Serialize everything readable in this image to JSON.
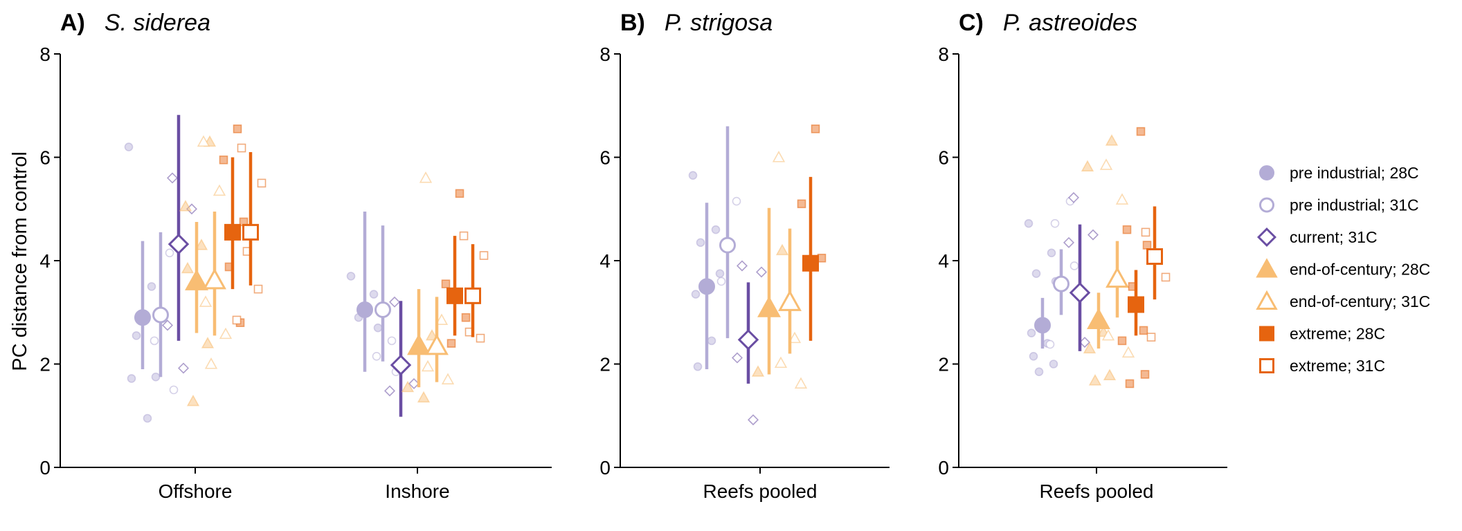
{
  "figure": {
    "ylabel": "PC distance from control"
  },
  "legend": [
    {
      "label": "pre industrial; 28C",
      "color": "#b3acd6",
      "shape": "circle",
      "filled": true
    },
    {
      "label": "pre industrial; 31C",
      "color": "#b3acd6",
      "shape": "circle",
      "filled": false
    },
    {
      "label": "current; 31C",
      "color": "#6a4ea3",
      "shape": "diamond",
      "filled": false
    },
    {
      "label": "end-of-century; 28C",
      "color": "#f8bd73",
      "shape": "triangle",
      "filled": true
    },
    {
      "label": "end-of-century; 31C",
      "color": "#f8bd73",
      "shape": "triangle",
      "filled": false
    },
    {
      "label": "extreme; 28C",
      "color": "#e6640f",
      "shape": "square",
      "filled": true
    },
    {
      "label": "extreme; 31C",
      "color": "#e6640f",
      "shape": "square",
      "filled": false
    }
  ],
  "chart_data": [
    {
      "type": "scatter",
      "panel_label": "A)",
      "title": "S. siderea",
      "ylabel": "PC distance from control",
      "ylim": [
        0,
        8
      ],
      "yticks": [
        0,
        2,
        4,
        6,
        8
      ],
      "categories": [
        "Offshore",
        "Inshore"
      ],
      "grid": false,
      "groups": [
        {
          "category": "Offshore",
          "series": [
            {
              "name": "pre industrial; 28C",
              "mean": 2.9,
              "lower": 1.9,
              "upper": 4.38,
              "points": [
                6.2,
                3.5,
                2.55,
                1.75,
                1.72,
                0.95
              ]
            },
            {
              "name": "pre industrial; 31C",
              "mean": 2.95,
              "lower": 1.75,
              "upper": 4.55,
              "points": [
                4.15,
                2.45,
                1.5
              ]
            },
            {
              "name": "current; 31C",
              "mean": 4.32,
              "lower": 2.45,
              "upper": 6.82,
              "points": [
                5.6,
                5.0,
                2.75,
                1.92
              ]
            },
            {
              "name": "end-of-century; 28C",
              "mean": 3.6,
              "lower": 2.6,
              "upper": 4.75,
              "points": [
                6.3,
                5.05,
                4.3,
                3.85,
                2.4,
                1.28
              ]
            },
            {
              "name": "end-of-century; 31C",
              "mean": 3.62,
              "lower": 2.55,
              "upper": 4.95,
              "points": [
                6.3,
                5.35,
                3.2,
                2.58,
                2.0
              ]
            },
            {
              "name": "extreme; 28C",
              "mean": 4.55,
              "lower": 3.45,
              "upper": 6.0,
              "points": [
                6.55,
                5.95,
                4.75,
                3.88,
                2.8
              ]
            },
            {
              "name": "extreme; 31C",
              "mean": 4.55,
              "lower": 3.52,
              "upper": 6.1,
              "points": [
                6.18,
                5.5,
                4.18,
                3.45,
                2.85
              ]
            }
          ]
        },
        {
          "category": "Inshore",
          "series": [
            {
              "name": "pre industrial; 28C",
              "mean": 3.05,
              "lower": 1.85,
              "upper": 4.95,
              "points": [
                3.7,
                3.35,
                2.9,
                2.7
              ]
            },
            {
              "name": "pre industrial; 31C",
              "mean": 3.05,
              "lower": 2.05,
              "upper": 4.68,
              "points": [
                2.45,
                2.15,
                1.85
              ]
            },
            {
              "name": "current; 31C",
              "mean": 1.98,
              "lower": 0.98,
              "upper": 3.22,
              "points": [
                3.2,
                1.62,
                1.48
              ]
            },
            {
              "name": "end-of-century; 28C",
              "mean": 2.35,
              "lower": 1.55,
              "upper": 3.45,
              "points": [
                2.55,
                1.55,
                1.35
              ]
            },
            {
              "name": "end-of-century; 31C",
              "mean": 2.35,
              "lower": 1.65,
              "upper": 3.3,
              "points": [
                5.6,
                2.85,
                1.95,
                1.7
              ]
            },
            {
              "name": "extreme; 28C",
              "mean": 3.32,
              "lower": 2.55,
              "upper": 4.48,
              "points": [
                5.3,
                3.55,
                2.9,
                2.4
              ]
            },
            {
              "name": "extreme; 31C",
              "mean": 3.32,
              "lower": 2.52,
              "upper": 4.32,
              "points": [
                4.48,
                4.1,
                2.62,
                2.5
              ]
            }
          ]
        }
      ]
    },
    {
      "type": "scatter",
      "panel_label": "B)",
      "title": "P. strigosa",
      "ylim": [
        0,
        8
      ],
      "yticks": [
        0,
        2,
        4,
        6,
        8
      ],
      "categories": [
        "Reefs pooled"
      ],
      "grid": false,
      "groups": [
        {
          "category": "Reefs pooled",
          "series": [
            {
              "name": "pre industrial; 28C",
              "mean": 3.5,
              "lower": 1.9,
              "upper": 5.12,
              "points": [
                5.65,
                4.6,
                4.35,
                3.75,
                3.35,
                2.45,
                1.95
              ]
            },
            {
              "name": "pre industrial; 31C",
              "mean": 4.3,
              "lower": 2.5,
              "upper": 6.6,
              "points": [
                5.15,
                3.6
              ]
            },
            {
              "name": "current; 31C",
              "mean": 2.47,
              "lower": 1.62,
              "upper": 3.58,
              "points": [
                3.9,
                3.78,
                2.12,
                0.92
              ]
            },
            {
              "name": "end-of-century; 28C",
              "mean": 3.08,
              "lower": 1.8,
              "upper": 5.02,
              "points": [
                4.2,
                1.85
              ]
            },
            {
              "name": "end-of-century; 31C",
              "mean": 3.2,
              "lower": 2.2,
              "upper": 4.62,
              "points": [
                6.0,
                2.5,
                2.02,
                1.62
              ]
            },
            {
              "name": "extreme; 28C",
              "mean": 3.95,
              "lower": 2.45,
              "upper": 5.62,
              "points": [
                6.55,
                5.1,
                4.05
              ]
            }
          ]
        }
      ]
    },
    {
      "type": "scatter",
      "panel_label": "C)",
      "title": "P. astreoides",
      "ylim": [
        0,
        8
      ],
      "yticks": [
        0,
        2,
        4,
        6,
        8
      ],
      "categories": [
        "Reefs pooled"
      ],
      "grid": false,
      "groups": [
        {
          "category": "Reefs pooled",
          "series": [
            {
              "name": "pre industrial; 28C",
              "mean": 2.75,
              "lower": 2.3,
              "upper": 3.28,
              "points": [
                4.72,
                4.15,
                3.75,
                3.6,
                2.6,
                2.4,
                2.15,
                2.0,
                1.85
              ]
            },
            {
              "name": "pre industrial; 31C",
              "mean": 3.55,
              "lower": 2.95,
              "upper": 4.22,
              "points": [
                5.15,
                4.72,
                3.9,
                2.38
              ]
            },
            {
              "name": "current; 31C",
              "mean": 3.38,
              "lower": 2.25,
              "upper": 4.7,
              "points": [
                5.22,
                4.5,
                4.35,
                2.42
              ]
            },
            {
              "name": "end-of-century; 28C",
              "mean": 2.85,
              "lower": 2.3,
              "upper": 3.38,
              "points": [
                6.32,
                5.82,
                2.62,
                2.3,
                1.78,
                1.68
              ]
            },
            {
              "name": "end-of-century; 31C",
              "mean": 3.65,
              "lower": 2.9,
              "upper": 4.38,
              "points": [
                5.85,
                5.18,
                2.55,
                2.22
              ]
            },
            {
              "name": "extreme; 28C",
              "mean": 3.15,
              "lower": 2.55,
              "upper": 3.82,
              "points": [
                6.5,
                4.6,
                4.3,
                3.5,
                2.65,
                2.45,
                1.8,
                1.62
              ]
            },
            {
              "name": "extreme; 31C",
              "mean": 4.08,
              "lower": 3.25,
              "upper": 5.05,
              "points": [
                4.55,
                3.68,
                2.52
              ]
            }
          ]
        }
      ]
    }
  ]
}
